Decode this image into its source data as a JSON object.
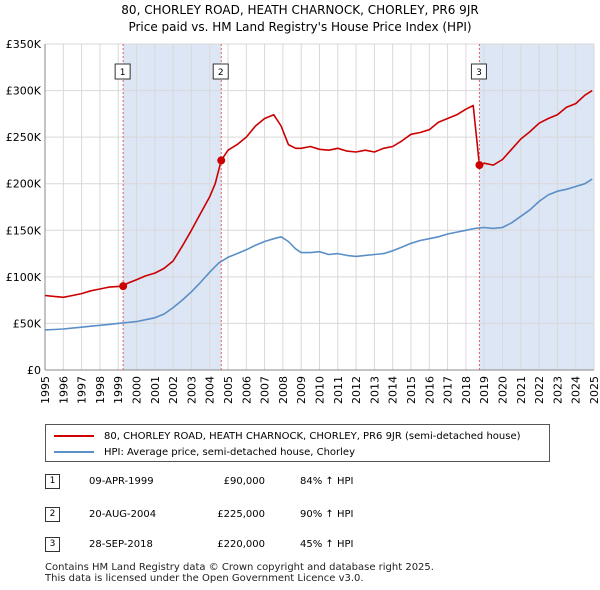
{
  "title": {
    "line1": "80, CHORLEY ROAD, HEATH CHARNOCK, CHORLEY, PR6 9JR",
    "line2": "Price paid vs. HM Land Registry's House Price Index (HPI)"
  },
  "colors": {
    "property": "#cc0000",
    "hpi": "#5b8fc7",
    "band": "#dce6f5",
    "grid": "#d9d9d9"
  },
  "chart_data": {
    "type": "line",
    "title": "Price paid vs. HM Land Registry's House Price Index (HPI)",
    "xlabel": "",
    "ylabel": "",
    "xlim": [
      1995,
      2025
    ],
    "ylim": [
      0,
      350000
    ],
    "grid": true,
    "x_ticks": [
      1995,
      1996,
      1997,
      1998,
      1999,
      2000,
      2001,
      2002,
      2003,
      2004,
      2005,
      2006,
      2007,
      2008,
      2009,
      2010,
      2011,
      2012,
      2013,
      2014,
      2015,
      2016,
      2017,
      2018,
      2019,
      2020,
      2021,
      2022,
      2023,
      2024,
      2025
    ],
    "y_ticks": [
      {
        "value": 0,
        "label": "£0"
      },
      {
        "value": 50000,
        "label": "£50K"
      },
      {
        "value": 100000,
        "label": "£100K"
      },
      {
        "value": 150000,
        "label": "£150K"
      },
      {
        "value": 200000,
        "label": "£200K"
      },
      {
        "value": 250000,
        "label": "£250K"
      },
      {
        "value": 300000,
        "label": "£300K"
      },
      {
        "value": 350000,
        "label": "£350K"
      }
    ],
    "series": [
      {
        "name": "80, CHORLEY ROAD, HEATH CHARNOCK, CHORLEY, PR6 9JR (semi-detached house)",
        "color": "#cc0000",
        "x": [
          1995.0,
          1995.5,
          1996.0,
          1996.5,
          1997.0,
          1997.5,
          1998.0,
          1998.5,
          1999.27,
          1999.5,
          2000.0,
          2000.5,
          2001.0,
          2001.5,
          2002.0,
          2002.5,
          2003.0,
          2003.5,
          2004.0,
          2004.3,
          2004.63,
          2005.0,
          2005.5,
          2006.0,
          2006.5,
          2007.0,
          2007.5,
          2007.9,
          2008.3,
          2008.7,
          2009.0,
          2009.5,
          2010.0,
          2010.5,
          2011.0,
          2011.5,
          2012.0,
          2012.5,
          2013.0,
          2013.5,
          2014.0,
          2014.5,
          2015.0,
          2015.5,
          2016.0,
          2016.5,
          2017.0,
          2017.5,
          2018.0,
          2018.4,
          2018.74,
          2019.0,
          2019.5,
          2020.0,
          2020.5,
          2021.0,
          2021.5,
          2022.0,
          2022.5,
          2023.0,
          2023.5,
          2024.0,
          2024.5,
          2024.9
        ],
        "values": [
          80000,
          79000,
          78000,
          80000,
          82000,
          85000,
          87000,
          89000,
          90000,
          93000,
          97000,
          101000,
          104000,
          109000,
          117000,
          133000,
          150000,
          168000,
          186000,
          200000,
          225000,
          236000,
          242000,
          250000,
          262000,
          270000,
          274000,
          262000,
          242000,
          238000,
          238000,
          240000,
          237000,
          236000,
          238000,
          235000,
          234000,
          236000,
          234000,
          238000,
          240000,
          246000,
          253000,
          255000,
          258000,
          266000,
          270000,
          274000,
          280000,
          284000,
          220000,
          222000,
          220000,
          226000,
          237000,
          248000,
          256000,
          265000,
          270000,
          274000,
          282000,
          286000,
          295000,
          300000
        ]
      },
      {
        "name": "HPI: Average price, semi-detached house, Chorley",
        "color": "#5b8fc7",
        "x": [
          1995.0,
          1995.5,
          1996.0,
          1996.5,
          1997.0,
          1997.5,
          1998.0,
          1998.5,
          1999.0,
          1999.5,
          2000.0,
          2000.5,
          2001.0,
          2001.5,
          2002.0,
          2002.5,
          2003.0,
          2003.5,
          2004.0,
          2004.5,
          2005.0,
          2005.5,
          2006.0,
          2006.5,
          2007.0,
          2007.5,
          2007.9,
          2008.3,
          2008.7,
          2009.0,
          2009.5,
          2010.0,
          2010.5,
          2011.0,
          2011.5,
          2012.0,
          2012.5,
          2013.0,
          2013.5,
          2014.0,
          2014.5,
          2015.0,
          2015.5,
          2016.0,
          2016.5,
          2017.0,
          2017.5,
          2018.0,
          2018.5,
          2019.0,
          2019.5,
          2020.0,
          2020.5,
          2021.0,
          2021.5,
          2022.0,
          2022.5,
          2023.0,
          2023.5,
          2024.0,
          2024.5,
          2024.9
        ],
        "values": [
          43000,
          43500,
          44000,
          45000,
          46000,
          47000,
          48000,
          49000,
          50000,
          51000,
          52000,
          54000,
          56000,
          60000,
          67000,
          75000,
          84000,
          94000,
          105000,
          115000,
          121000,
          125000,
          129000,
          134000,
          138000,
          141000,
          143000,
          138000,
          130000,
          126000,
          126000,
          127000,
          124000,
          125000,
          123000,
          122000,
          123000,
          124000,
          125000,
          128000,
          132000,
          136000,
          139000,
          141000,
          143000,
          146000,
          148000,
          150000,
          152000,
          153000,
          152000,
          153000,
          158000,
          165000,
          172000,
          181000,
          188000,
          192000,
          194000,
          197000,
          200000,
          205000
        ]
      }
    ],
    "sales": [
      {
        "number": "1",
        "x": 1999.27,
        "value": 90000
      },
      {
        "number": "2",
        "x": 2004.63,
        "value": 225000
      },
      {
        "number": "3",
        "x": 2018.74,
        "value": 220000
      }
    ]
  },
  "legend": {
    "property_label": "80, CHORLEY ROAD, HEATH CHARNOCK, CHORLEY, PR6 9JR (semi-detached house)",
    "hpi_label": "HPI: Average price, semi-detached house, Chorley"
  },
  "sales_table": [
    {
      "number": "1",
      "date": "09-APR-1999",
      "price": "£90,000",
      "hpi": "84% ↑ HPI"
    },
    {
      "number": "2",
      "date": "20-AUG-2004",
      "price": "£225,000",
      "hpi": "90% ↑ HPI"
    },
    {
      "number": "3",
      "date": "28-SEP-2018",
      "price": "£220,000",
      "hpi": "45% ↑ HPI"
    }
  ],
  "footer": {
    "line1": "Contains HM Land Registry data © Crown copyright and database right 2025.",
    "line2": "This data is licensed under the Open Government Licence v3.0."
  }
}
